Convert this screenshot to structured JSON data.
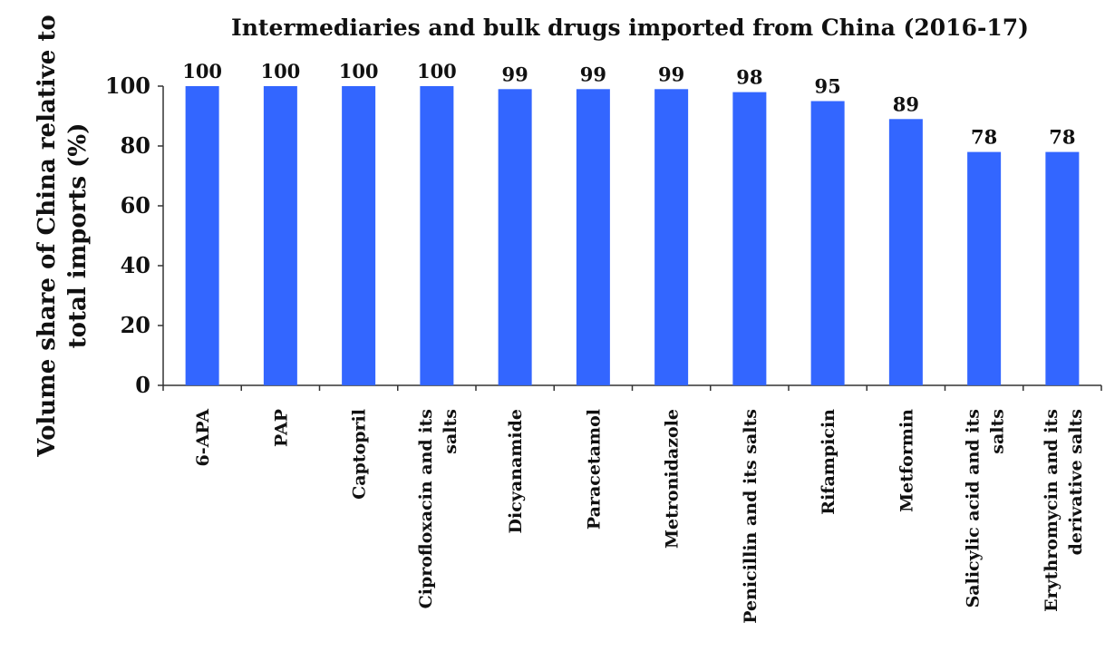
{
  "chart_data": {
    "type": "bar",
    "title": "Intermediaries and bulk drugs imported from China (2016-17)",
    "ylabel_lines": [
      "Volume share of China relative to",
      "total imports (%)"
    ],
    "xlabel": "",
    "ylim": [
      0,
      100
    ],
    "yticks": [
      0,
      20,
      40,
      60,
      80,
      100
    ],
    "grid": false,
    "legend": "none",
    "bar_color": "#3366FF",
    "categories": [
      [
        "6-APA"
      ],
      [
        "PAP"
      ],
      [
        "Captopril"
      ],
      [
        "Ciprofloxacin and its",
        "salts"
      ],
      [
        "Dicyanamide"
      ],
      [
        "Paracetamol"
      ],
      [
        "Metronidazole"
      ],
      [
        "Penicillin and its salts"
      ],
      [
        "Rifampicin"
      ],
      [
        "Metformin"
      ],
      [
        "Salicylic acid and its",
        "salts"
      ],
      [
        "Erythromycin and its",
        "derivative salts"
      ]
    ],
    "values": [
      100,
      100,
      100,
      100,
      99,
      99,
      99,
      98,
      95,
      89,
      78,
      78
    ],
    "value_labels": [
      "100",
      "100",
      "100",
      "100",
      "99",
      "99",
      "99",
      "98",
      "95",
      "89",
      "78",
      "78"
    ]
  }
}
